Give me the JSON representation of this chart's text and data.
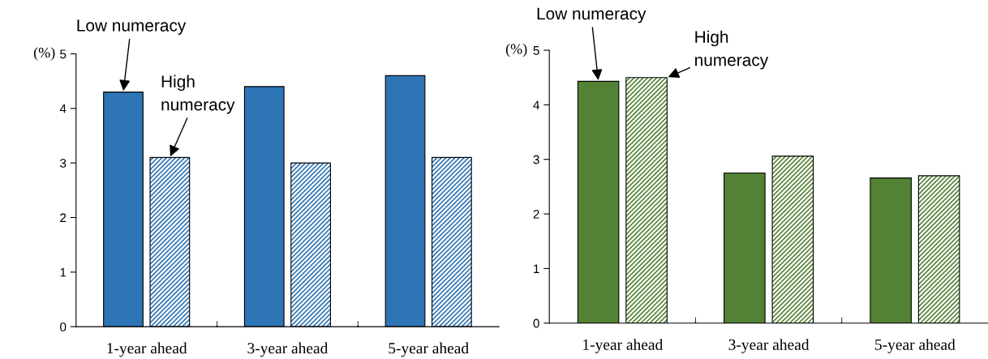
{
  "chart_data": [
    {
      "type": "bar",
      "ylabel": "(%)",
      "categories": [
        "1-year ahead",
        "3-year ahead",
        "5-year ahead"
      ],
      "ylim": [
        0,
        5
      ],
      "yticks": [
        0,
        1,
        2,
        3,
        4,
        5
      ],
      "grid": false,
      "legend": false,
      "series": [
        {
          "name": "Low numeracy",
          "color": "#2e75b6",
          "values": [
            4.3,
            4.4,
            4.6
          ]
        },
        {
          "name": "High\nnumeracy",
          "color": "#2e75b6",
          "values": [
            3.1,
            3.0,
            3.1
          ]
        }
      ]
    },
    {
      "type": "bar",
      "ylabel": "(%)",
      "categories": [
        "1-year ahead",
        "3-year ahead",
        "5-year ahead"
      ],
      "ylim": [
        0,
        5
      ],
      "yticks": [
        0,
        1,
        2,
        3,
        4,
        5
      ],
      "grid": false,
      "legend": false,
      "series": [
        {
          "name": "Low numeracy",
          "color": "#548235",
          "values": [
            4.43,
            2.75,
            2.66
          ]
        },
        {
          "name": "High\nnumeracy",
          "color": "#548235",
          "values": [
            4.5,
            3.06,
            2.7
          ]
        }
      ]
    }
  ]
}
